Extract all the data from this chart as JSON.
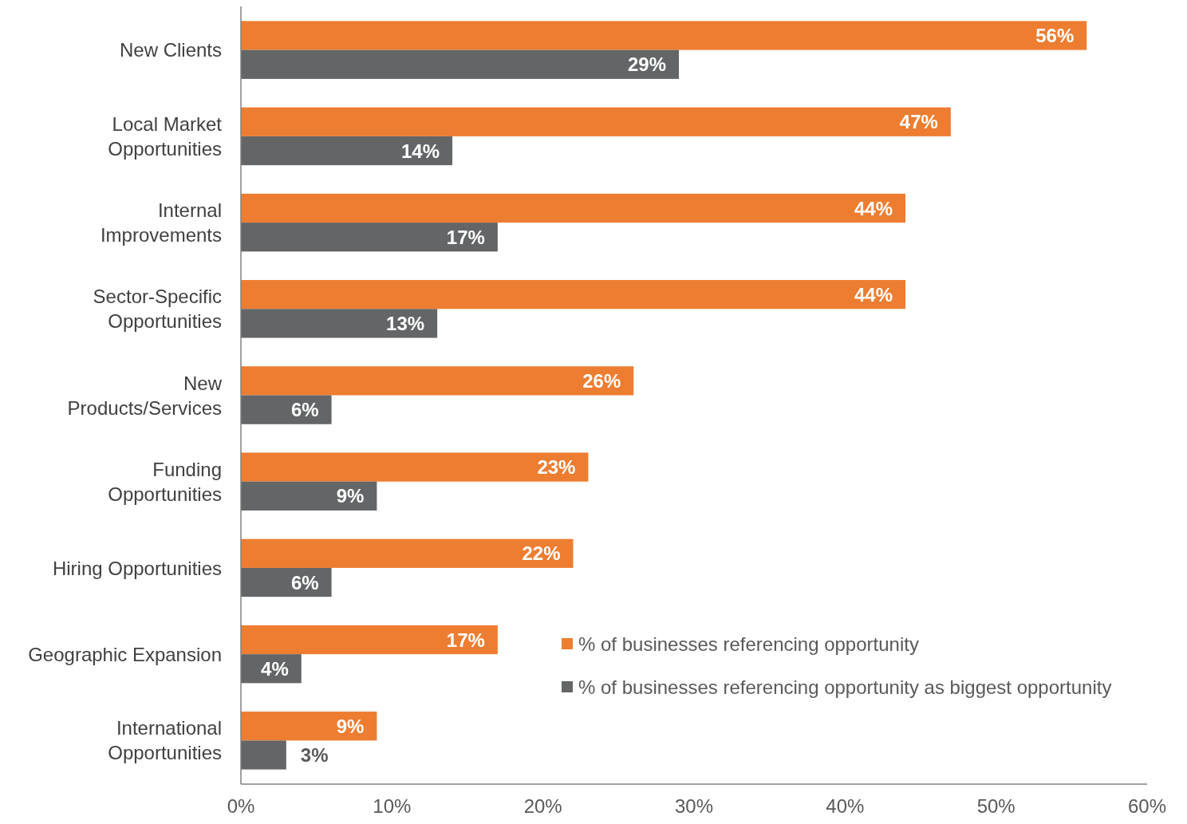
{
  "chart_data": {
    "type": "bar",
    "orientation": "horizontal",
    "categories": [
      "New Clients",
      "Local Market Opportunities",
      "Internal Improvements",
      "Sector-Specific Opportunities",
      "New Products/Services",
      "Funding Opportunities",
      "Hiring Opportunities",
      "Geographic Expansion",
      "International Opportunities"
    ],
    "series": [
      {
        "name": "% of businesses referencing opportunity",
        "color": "#ed7d31",
        "values": [
          56,
          47,
          44,
          44,
          26,
          23,
          22,
          17,
          9
        ],
        "value_labels": [
          "56%",
          "47%",
          "44%",
          "44%",
          "26%",
          "23%",
          "22%",
          "17%",
          "9%"
        ]
      },
      {
        "name": "% of businesses referencing opportunity as biggest opportunity",
        "color": "#636566",
        "values": [
          29,
          14,
          17,
          13,
          6,
          9,
          6,
          4,
          3
        ],
        "value_labels": [
          "29%",
          "14%",
          "17%",
          "13%",
          "6%",
          "9%",
          "6%",
          "4%",
          "3%"
        ]
      }
    ],
    "xlim": [
      0,
      60
    ],
    "xticks": [
      {
        "value": 0,
        "label": "0%"
      },
      {
        "value": 10,
        "label": "10%"
      },
      {
        "value": 20,
        "label": "20%"
      },
      {
        "value": 30,
        "label": "30%"
      },
      {
        "value": 40,
        "label": "40%"
      },
      {
        "value": 50,
        "label": "50%"
      },
      {
        "value": 60,
        "label": "60%"
      }
    ],
    "legend": "bottom right"
  }
}
